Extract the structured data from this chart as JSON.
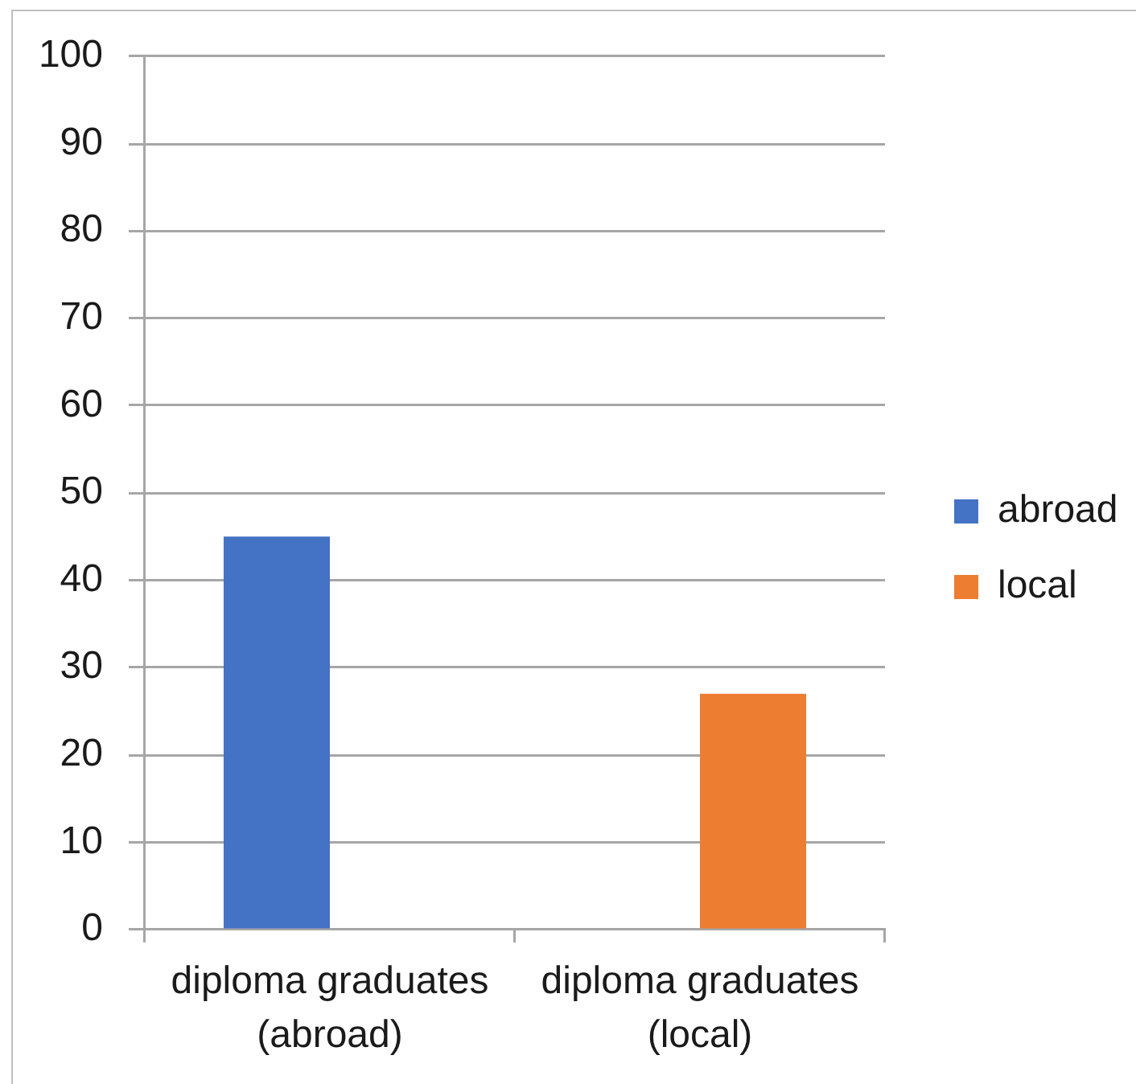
{
  "chart_data": {
    "type": "bar",
    "categories": [
      "diploma graduates (abroad)",
      "diploma graduates (local)"
    ],
    "series": [
      {
        "name": "abroad",
        "color": "#4472c4",
        "values": [
          45,
          null
        ]
      },
      {
        "name": "local",
        "color": "#ed7d31",
        "values": [
          null,
          27
        ]
      }
    ],
    "ylim": [
      0,
      100
    ],
    "yticks": [
      0,
      10,
      20,
      30,
      40,
      50,
      60,
      70,
      80,
      90,
      100
    ],
    "grid": "y",
    "legend": "right"
  }
}
